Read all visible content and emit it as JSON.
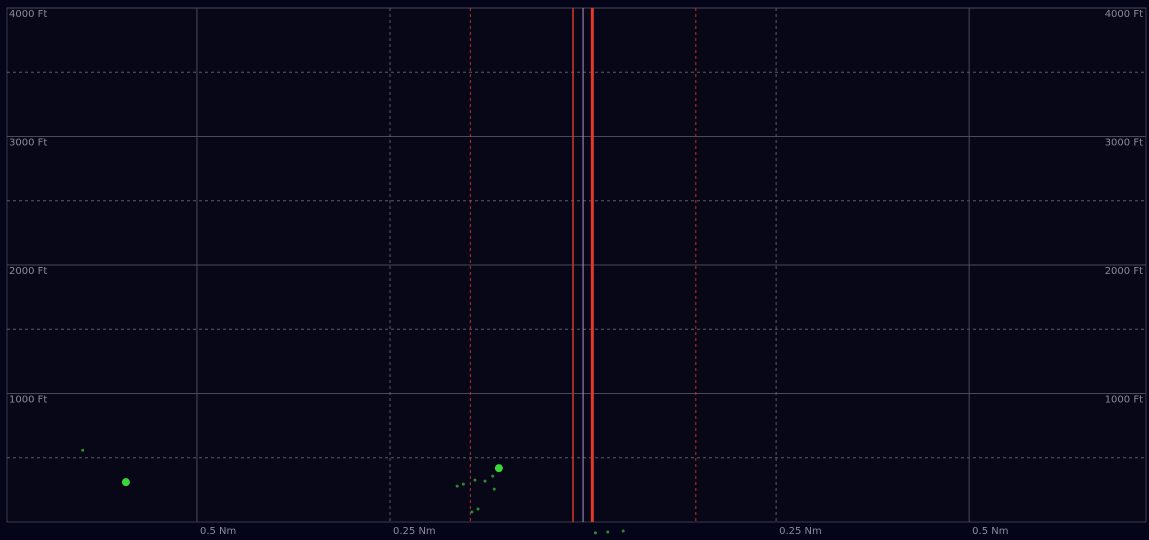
{
  "chart_data": {
    "type": "scatter",
    "xlim": [
      -0.746,
      0.729
    ],
    "ylim": [
      0,
      4000
    ],
    "xticks": [
      {
        "value": -0.5,
        "label": "0.5 Nm",
        "dash": false
      },
      {
        "value": -0.25,
        "label": "0.25 Nm",
        "dash": true
      },
      {
        "value": 0.25,
        "label": "0.25 Nm",
        "dash": true
      },
      {
        "value": 0.5,
        "label": "0.5 Nm",
        "dash": false
      }
    ],
    "yticks": [
      {
        "value": 1000,
        "label": "1000 Ft"
      },
      {
        "value": 2000,
        "label": "2000 Ft"
      },
      {
        "value": 3000,
        "label": "3000 Ft"
      },
      {
        "value": 4000,
        "label": "4000 Ft"
      }
    ],
    "minor_yticks": [
      500,
      1500,
      2500,
      3500
    ],
    "reference_lines": [
      {
        "x": -0.146,
        "color": "#c0302a",
        "dash": true,
        "width": 1
      },
      {
        "x": -0.013,
        "color": "#d8382a",
        "dash": false,
        "width": 1.5
      },
      {
        "x": 0,
        "color": "#a898c8",
        "dash": false,
        "width": 1
      },
      {
        "x": 0.012,
        "color": "#e0382a",
        "dash": false,
        "width": 3
      },
      {
        "x": 0.146,
        "color": "#c0302a",
        "dash": true,
        "width": 1
      }
    ],
    "series": [
      {
        "color": "#39d739",
        "marker_size": 4,
        "x": [
          -0.592,
          -0.109
        ],
        "values": [
          310,
          419
        ]
      },
      {
        "color": "#2e8a2e",
        "marker_size": 1.5,
        "x": [
          -0.648,
          -0.163,
          -0.155,
          -0.14,
          -0.127,
          -0.117,
          -0.115,
          -0.144,
          -0.136,
          0.016,
          0.032,
          0.052
        ],
        "values": [
          558,
          279,
          295,
          326,
          318,
          357,
          256,
          78,
          101,
          -85,
          -78,
          -70
        ]
      }
    ]
  }
}
